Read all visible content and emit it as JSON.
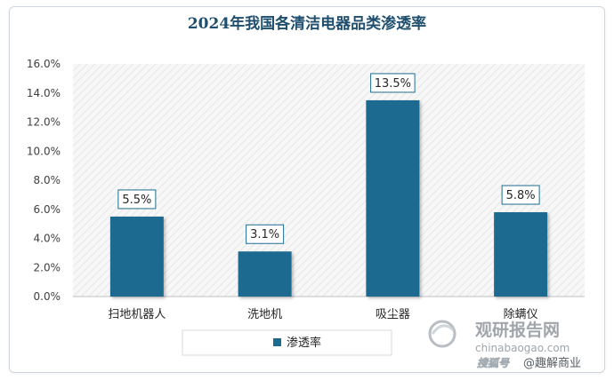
{
  "chart_data": {
    "type": "bar",
    "title": "2024年我国各清洁电器品类渗透率",
    "categories": [
      "扫地机器人",
      "洗地机",
      "吸尘器",
      "除螨仪"
    ],
    "series": [
      {
        "name": "渗透率",
        "values": [
          5.5,
          3.1,
          13.5,
          5.8
        ],
        "color": "#1c6b8f"
      }
    ],
    "data_labels": [
      "5.5%",
      "3.1%",
      "13.5%",
      "5.8%"
    ],
    "y_ticks": [
      "0.0%",
      "2.0%",
      "4.0%",
      "6.0%",
      "8.0%",
      "10.0%",
      "12.0%",
      "14.0%",
      "16.0%"
    ],
    "ylim": [
      0,
      16
    ],
    "legend_position": "bottom",
    "grid": false
  },
  "watermark": {
    "brand_cn": "观研报告网",
    "brand_url": "chinabaogao.com",
    "source_tag": "搜狐号",
    "source_name": "@趣解商业"
  }
}
